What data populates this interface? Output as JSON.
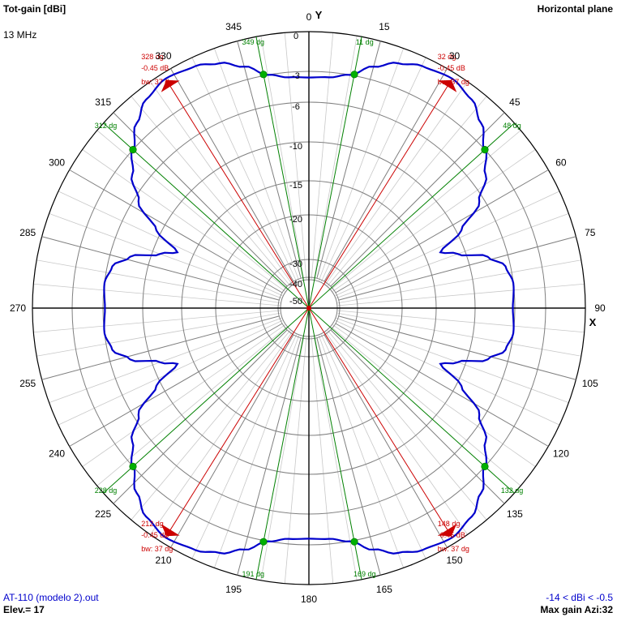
{
  "header": {
    "quantity": "Tot-gain [dBi]",
    "frequency": "13 MHz",
    "plane": "Horizontal plane"
  },
  "footer": {
    "file": "AT-110 (modelo 2).out",
    "elevation": "Elev.= 17",
    "range": "-14 < dBi < -0.5",
    "max_gain": "Max gain Azi:32"
  },
  "axes": {
    "y": "Y",
    "x": "X"
  },
  "colors": {
    "trace": "#0000cc",
    "grid": "#7f7f7f",
    "grid_minor": "#c8c8c8",
    "max_marker": "#cc0000",
    "beam_marker": "#008000",
    "footer_text": "#0000cc"
  },
  "chart_data": {
    "type": "polar",
    "radial_unit": "dBi",
    "radial_rings": [
      {
        "value": 0,
        "label": "0"
      },
      {
        "value": -3,
        "label": "-3"
      },
      {
        "value": -6,
        "label": "-6"
      },
      {
        "value": -10,
        "label": "-10"
      },
      {
        "value": -15,
        "label": "-15"
      },
      {
        "value": -20,
        "label": "-20"
      },
      {
        "value": -30,
        "label": "-30"
      },
      {
        "value": -40,
        "label": "-40"
      },
      {
        "value": -50,
        "label": "-50"
      }
    ],
    "azimuth_labels": [
      "0",
      "15",
      "30",
      "45",
      "60",
      "75",
      "90",
      "105",
      "120",
      "135",
      "150",
      "165",
      "180",
      "195",
      "210",
      "225",
      "240",
      "255",
      "270",
      "285",
      "300",
      "315",
      "330",
      "345"
    ],
    "pattern": [
      {
        "az": 0,
        "dbi": -3.6
      },
      {
        "az": 5,
        "dbi": -3.5
      },
      {
        "az": 10,
        "dbi": -3.0
      },
      {
        "az": 15,
        "dbi": -2.0
      },
      {
        "az": 20,
        "dbi": -1.2
      },
      {
        "az": 25,
        "dbi": -0.7
      },
      {
        "az": 32,
        "dbi": -0.45
      },
      {
        "az": 38,
        "dbi": -0.9
      },
      {
        "az": 43,
        "dbi": -1.8
      },
      {
        "az": 48,
        "dbi": -3.0
      },
      {
        "az": 53,
        "dbi": -4.5
      },
      {
        "az": 58,
        "dbi": -6.5
      },
      {
        "az": 63,
        "dbi": -9.5
      },
      {
        "az": 67,
        "dbi": -13.0
      },
      {
        "az": 70,
        "dbi": -11.0
      },
      {
        "az": 74,
        "dbi": -8.0
      },
      {
        "az": 78,
        "dbi": -6.5
      },
      {
        "az": 83,
        "dbi": -6.0
      },
      {
        "az": 90,
        "dbi": -6.2
      }
    ],
    "max_gain": {
      "value": -0.45,
      "unit": "dB",
      "beamwidth": 37,
      "azimuths": [
        32,
        148,
        212,
        328
      ]
    },
    "half_power_points": [
      11,
      48,
      132,
      169,
      191,
      228,
      312,
      349
    ],
    "markers": [
      {
        "az": 32,
        "kind": "max",
        "label": "32 dg",
        "side": "right"
      },
      {
        "az": 148,
        "kind": "max",
        "label": "148 dg",
        "side": "right"
      },
      {
        "az": 212,
        "kind": "max",
        "label": "212 dg",
        "side": "left"
      },
      {
        "az": 328,
        "kind": "max",
        "label": "328 dg",
        "side": "left"
      },
      {
        "az": 11,
        "kind": "hp",
        "label": "11 dg"
      },
      {
        "az": 48,
        "kind": "hp",
        "label": "48 dg"
      },
      {
        "az": 132,
        "kind": "hp",
        "label": "132 dg"
      },
      {
        "az": 169,
        "kind": "hp",
        "label": "169 dg"
      },
      {
        "az": 191,
        "kind": "hp",
        "label": "191 dg"
      },
      {
        "az": 228,
        "kind": "hp",
        "label": "228 dg"
      },
      {
        "az": 312,
        "kind": "hp",
        "label": "312 dg"
      },
      {
        "az": 349,
        "kind": "hp",
        "label": "349 dg"
      }
    ],
    "gain_label": "-0.45 dB",
    "bw_label": "bw: 37 dg"
  }
}
